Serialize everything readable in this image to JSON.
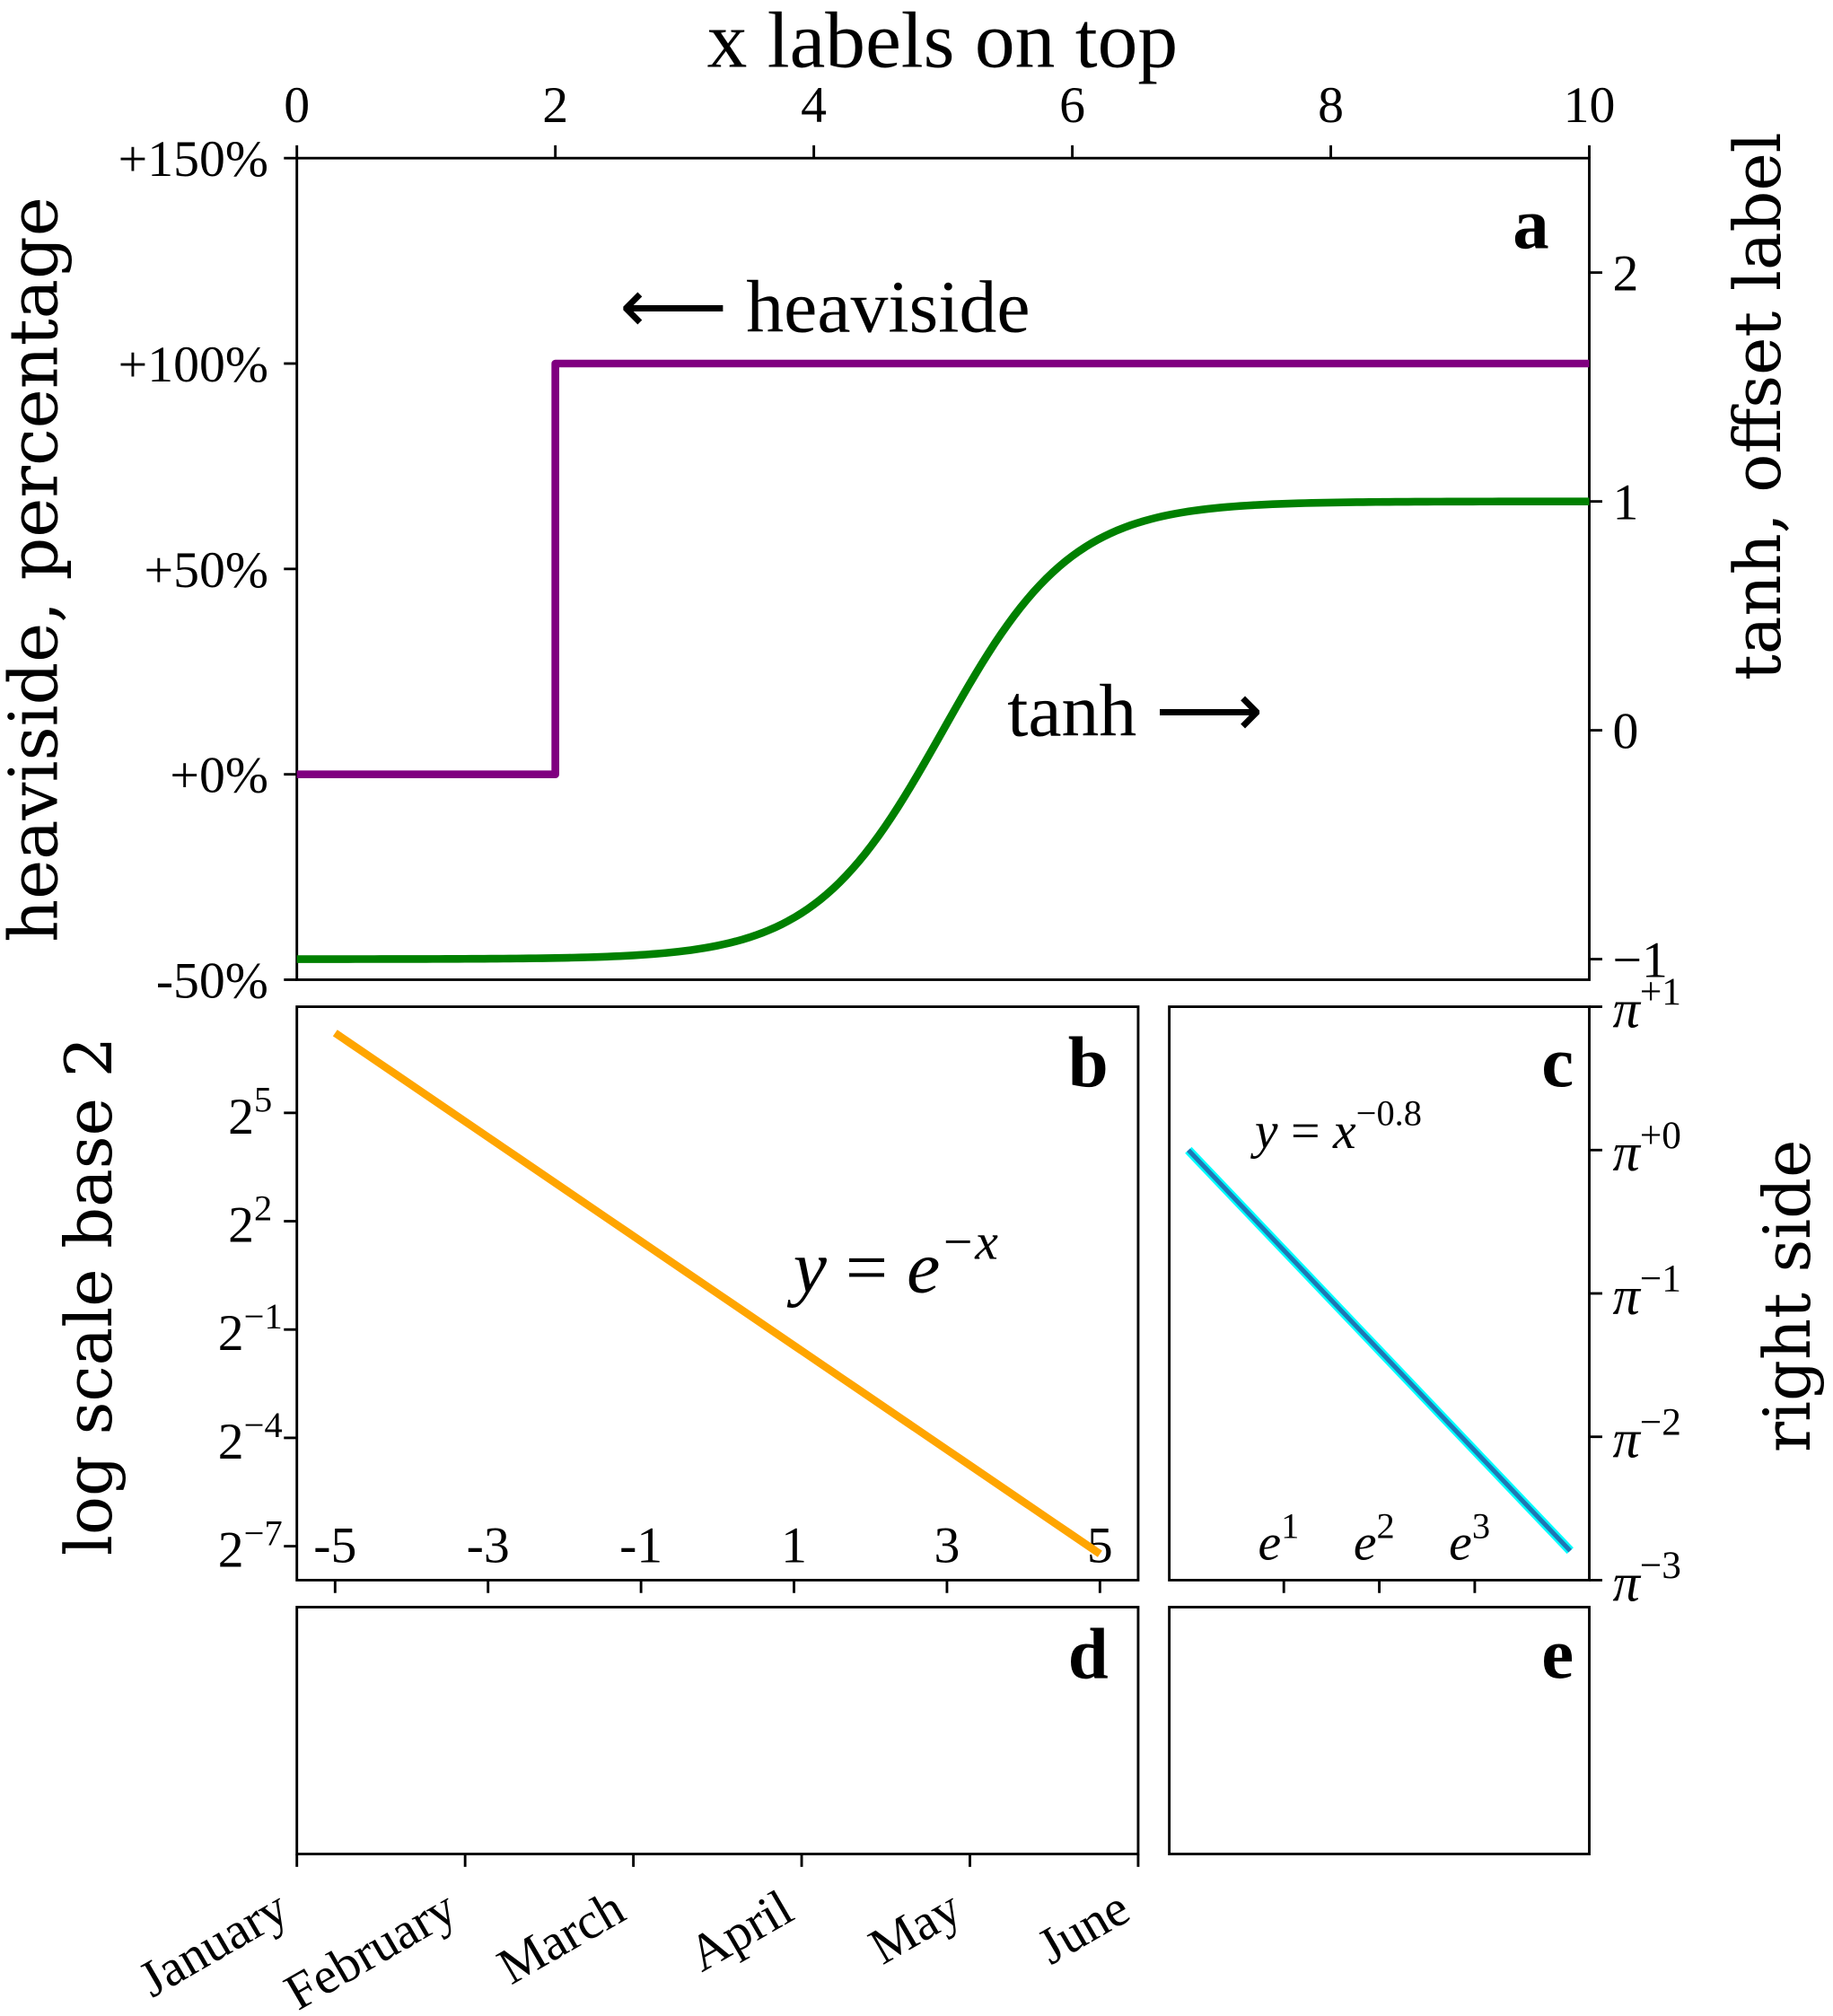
{
  "chart_data": [
    {
      "panel": "a",
      "type": "line",
      "title": "x labels on top",
      "xlabel": "",
      "xlim": [
        0,
        10
      ],
      "xticks": [
        0,
        2,
        4,
        6,
        8,
        10
      ],
      "xtick_labels": [
        "0",
        "2",
        "4",
        "6",
        "8",
        "10"
      ],
      "xaxis_position": "top",
      "ylabel_left": "heaviside, percentage",
      "ylim_left": [
        -50,
        150
      ],
      "yticks_left": [
        -50,
        0,
        50,
        100,
        150
      ],
      "ytick_labels_left": [
        "-50%",
        "+0%",
        "+50%",
        "+100%",
        "+150%"
      ],
      "ylabel_right": "tanh, offset label",
      "ylim_right": [
        -1.1,
        2.5
      ],
      "yticks_right": [
        -1,
        0,
        1,
        2
      ],
      "ytick_labels_right": [
        "−1",
        "0",
        "1",
        "2"
      ],
      "series": [
        {
          "name": "heaviside",
          "axis": "left",
          "color": "#800080",
          "function": "100*heaviside(x-2)",
          "x": [
            0,
            2,
            2,
            10
          ],
          "y": [
            0,
            0,
            100,
            100
          ]
        },
        {
          "name": "tanh",
          "axis": "right",
          "color": "#008000",
          "function": "tanh(x-5)",
          "x_range": [
            0,
            10
          ]
        }
      ],
      "annotations": [
        {
          "text": "⟵ heaviside"
        },
        {
          "text": "tanh ⟶"
        }
      ],
      "grid": false
    },
    {
      "panel": "b",
      "type": "line",
      "ylabel": "log scale base 2",
      "yscale": "log2",
      "xlim": [
        -5.5,
        5.5
      ],
      "xticks": [
        -5,
        -3,
        -1,
        1,
        3,
        5
      ],
      "xtick_labels": [
        "-5",
        "-3",
        "-1",
        "1",
        "3",
        "5"
      ],
      "ylim_log2": [
        -7.94,
        7.94
      ],
      "yticks_log2": [
        -7,
        -4,
        -1,
        2,
        5
      ],
      "ytick_labels": [
        {
          "base": "2",
          "exp": "−7"
        },
        {
          "base": "2",
          "exp": "−4"
        },
        {
          "base": "2",
          "exp": "−1"
        },
        {
          "base": "2",
          "exp": "2"
        },
        {
          "base": "2",
          "exp": "5"
        }
      ],
      "series": [
        {
          "color": "#ffa500",
          "function": "exp(-x)",
          "x_range": [
            -5,
            5
          ]
        }
      ],
      "annotation": {
        "lhs": "y",
        "eq": " = ",
        "base": "e",
        "exp": "−x"
      },
      "grid": false
    },
    {
      "panel": "c",
      "type": "line",
      "xscale": "ln",
      "yscale": "log_pi",
      "ylabel_right": "right side",
      "xlim_ln": [
        -0.2,
        4.2
      ],
      "xticks_ln": [
        1,
        2,
        3
      ],
      "xtick_labels": [
        {
          "base": "e",
          "exp": "1"
        },
        {
          "base": "e",
          "exp": "2"
        },
        {
          "base": "e",
          "exp": "3"
        }
      ],
      "ylim_logpi": [
        -3,
        1
      ],
      "yticks_logpi": [
        -3,
        -2,
        -1,
        0,
        1
      ],
      "ytick_labels": [
        {
          "base": "π",
          "exp": "−3"
        },
        {
          "base": "π",
          "exp": "−2"
        },
        {
          "base": "π",
          "exp": "−1"
        },
        {
          "base": "π",
          "exp": "+0"
        },
        {
          "base": "π",
          "exp": "+1"
        }
      ],
      "series": [
        {
          "color": "#1f77b4",
          "outline_color": "#00ffff",
          "function": "x^-0.8",
          "x_range": [
            1,
            54.6
          ]
        }
      ],
      "annotation": {
        "lhs": "y",
        "eq": " = ",
        "base": "x",
        "exp": "−0.8"
      },
      "grid": false
    },
    {
      "panel": "d",
      "type": "line",
      "xtick_labels": [
        "January",
        "February",
        "March",
        "April",
        "May",
        "June"
      ],
      "series": []
    },
    {
      "panel": "e",
      "type": "line",
      "series": []
    }
  ]
}
